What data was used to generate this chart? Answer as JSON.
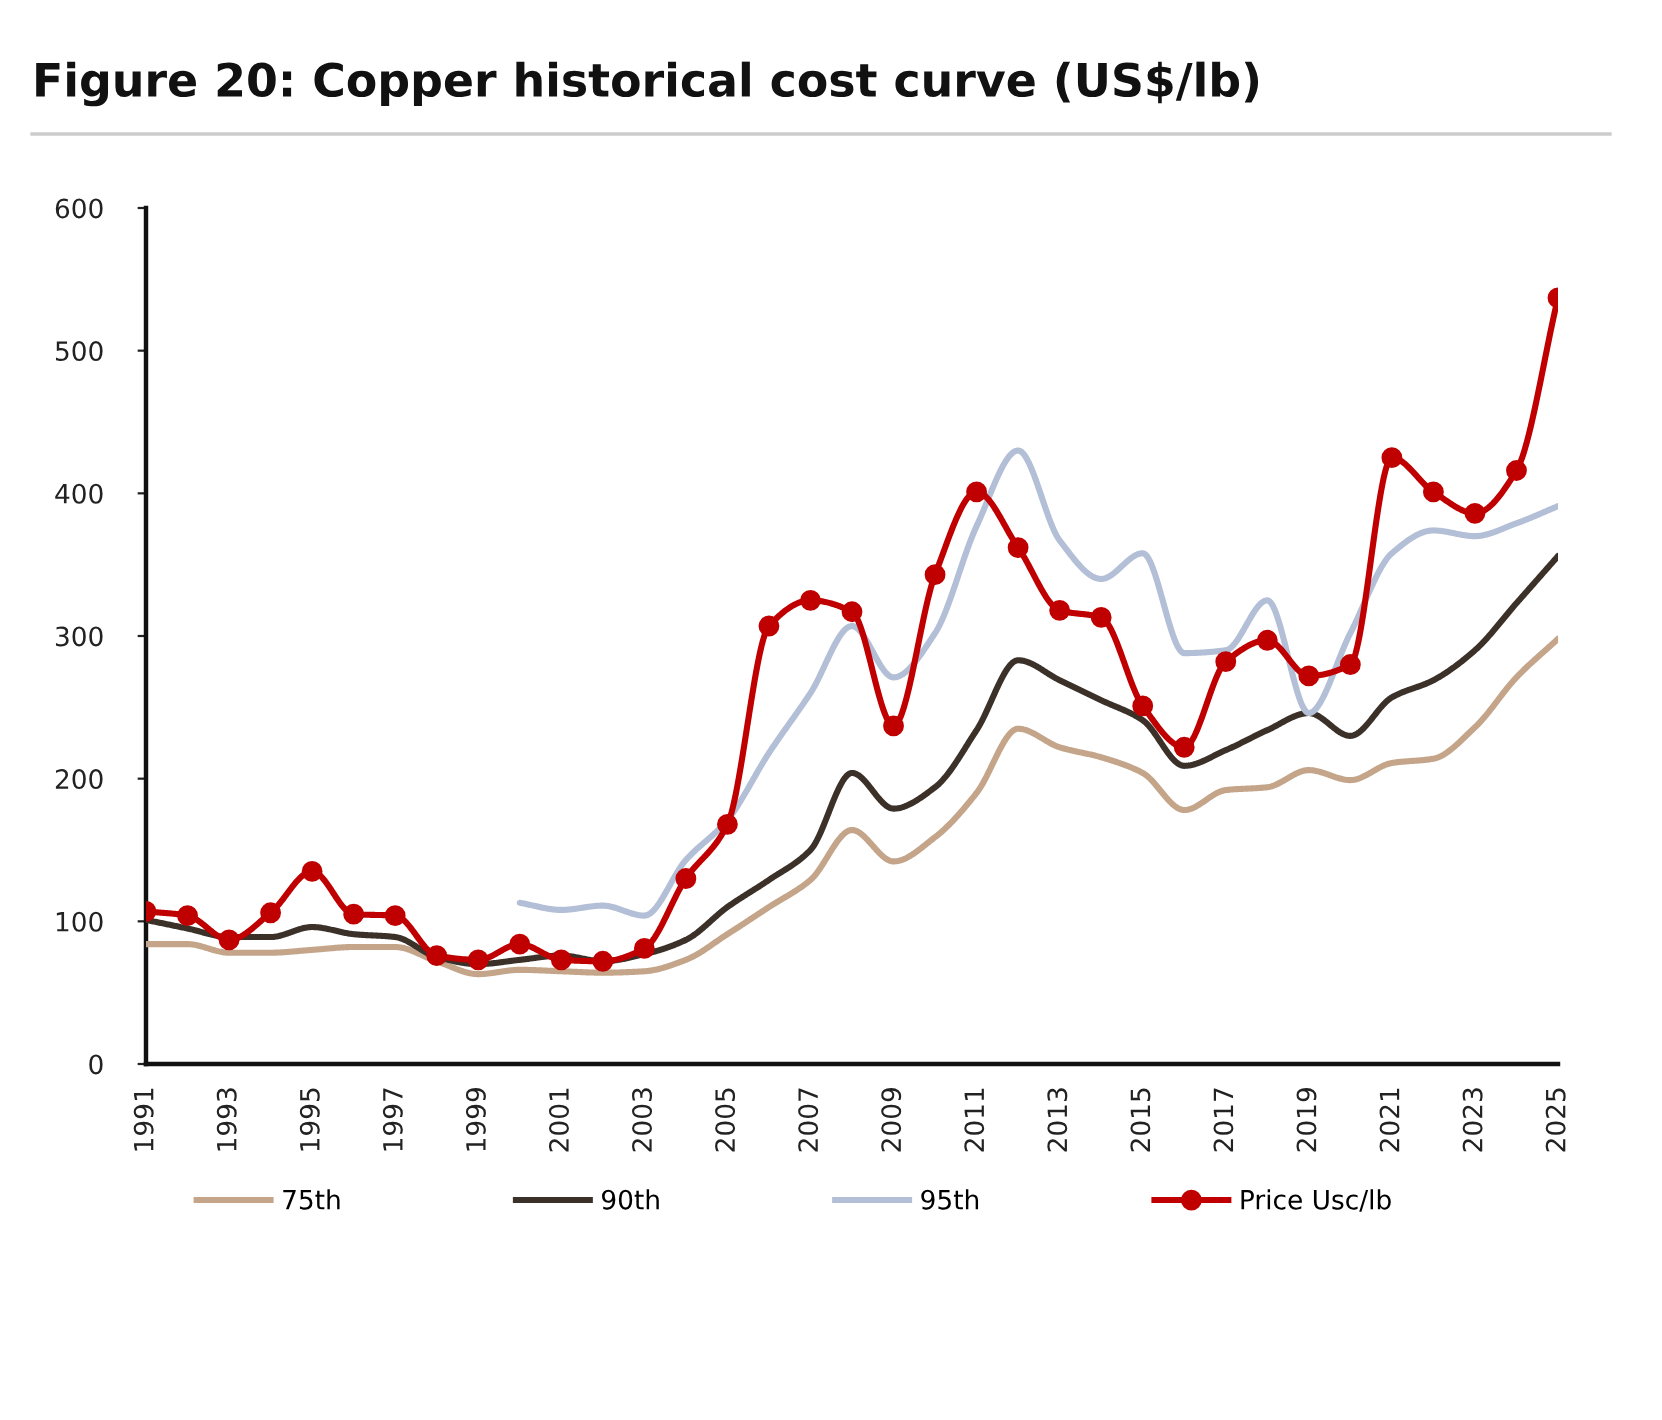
{
  "chart_data": {
    "type": "line",
    "title": "Figure 20: Copper historical cost curve (US$/lb)",
    "x": [
      1991,
      1992,
      1993,
      1994,
      1995,
      1996,
      1997,
      1998,
      1999,
      2000,
      2001,
      2002,
      2003,
      2004,
      2005,
      2006,
      2007,
      2008,
      2009,
      2010,
      2011,
      2012,
      2013,
      2014,
      2015,
      2016,
      2017,
      2018,
      2019,
      2020,
      2021,
      2022,
      2023,
      2024,
      2025
    ],
    "xlim": [
      1991,
      2025
    ],
    "xticks": [
      1991,
      1993,
      1995,
      1997,
      1999,
      2001,
      2003,
      2005,
      2007,
      2009,
      2011,
      2013,
      2015,
      2017,
      2019,
      2021,
      2023,
      2025
    ],
    "ylim": [
      0,
      600
    ],
    "yticks": [
      0,
      100,
      200,
      300,
      400,
      500,
      600
    ],
    "legend": "bottom",
    "line_style": "solid",
    "series": [
      {
        "name": "75th",
        "color": "#c4a58a",
        "values": [
          84,
          84,
          78,
          78,
          80,
          82,
          82,
          72,
          63,
          66,
          65,
          64,
          65,
          73,
          91,
          110,
          129,
          164,
          142,
          159,
          190,
          235,
          222,
          215,
          204,
          178,
          192,
          194,
          206,
          199,
          211,
          214,
          236,
          271,
          298
        ]
      },
      {
        "name": "90th",
        "color": "#3b3129",
        "values": [
          101,
          95,
          89,
          89,
          96,
          91,
          89,
          75,
          70,
          73,
          76,
          72,
          77,
          87,
          110,
          129,
          150,
          204,
          179,
          194,
          234,
          283,
          269,
          255,
          241,
          209,
          220,
          234,
          246,
          230,
          257,
          269,
          290,
          323,
          356
        ]
      },
      {
        "name": "95th",
        "color": "#b3bfd6",
        "values": [
          null,
          null,
          null,
          null,
          null,
          null,
          null,
          null,
          null,
          113,
          108,
          111,
          104,
          143,
          171,
          218,
          260,
          307,
          271,
          302,
          377,
          430,
          367,
          340,
          358,
          288,
          290,
          325,
          246,
          302,
          358,
          374,
          370,
          379,
          391
        ]
      },
      {
        "name": "Price Usc/lb",
        "color": "#c00000",
        "marker": "circle",
        "values": [
          107,
          104,
          87,
          106,
          135,
          105,
          104,
          76,
          73,
          84,
          73,
          72,
          81,
          130,
          168,
          307,
          325,
          317,
          237,
          343,
          401,
          362,
          318,
          313,
          251,
          222,
          282,
          297,
          272,
          280,
          425,
          401,
          386,
          416,
          537
        ]
      }
    ]
  }
}
